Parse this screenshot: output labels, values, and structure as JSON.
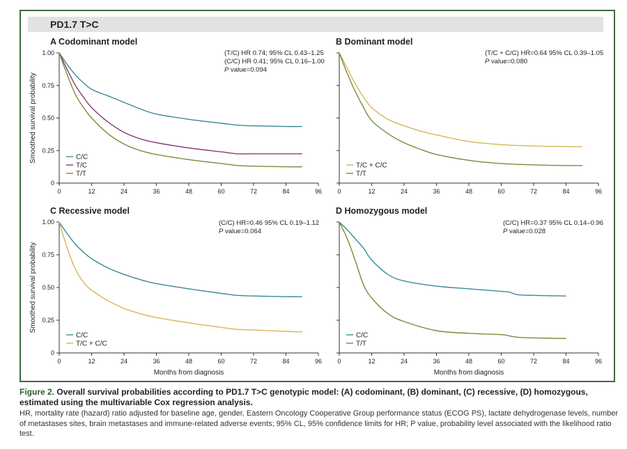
{
  "header": {
    "title": "PD1.7 T>C"
  },
  "colors": {
    "frame": "#3d6b3f",
    "cc": "#3a8a96",
    "tc": "#8b3a78",
    "tt": "#7d8a3a",
    "tc_cc": "#d8b457"
  },
  "chart_data": [
    {
      "type": "line",
      "panel": "A",
      "title": "A  Codominant model",
      "xlabel": "",
      "ylabel": "Smoothed survival probability",
      "xlim": [
        0,
        96
      ],
      "ylim": [
        0,
        1
      ],
      "xticks": [
        "0",
        "12",
        "24",
        "36",
        "48",
        "60",
        "72",
        "84",
        "96"
      ],
      "yticks": [
        "0",
        "0.25",
        "0.50",
        "0.75",
        "1.00"
      ],
      "annotation": [
        "(T/C) HR 0.74; 95% CL 0.43–1.25",
        "(C/C) HR 0.41; 95% CL 0.16–1.00",
        "P value=0.094"
      ],
      "legend_position": "bottom-left",
      "series": [
        {
          "name": "C/C",
          "color": "#3a8a96",
          "x": [
            0,
            3,
            6,
            9,
            12,
            18,
            24,
            30,
            36,
            48,
            60,
            66,
            72,
            84,
            90
          ],
          "y": [
            1,
            0.91,
            0.83,
            0.77,
            0.72,
            0.67,
            0.62,
            0.57,
            0.53,
            0.49,
            0.46,
            0.445,
            0.44,
            0.435,
            0.435
          ]
        },
        {
          "name": "T/C",
          "color": "#8b3a78",
          "x": [
            0,
            3,
            6,
            9,
            12,
            18,
            24,
            30,
            36,
            48,
            60,
            66,
            72,
            84,
            90
          ],
          "y": [
            1,
            0.87,
            0.75,
            0.66,
            0.58,
            0.47,
            0.39,
            0.34,
            0.31,
            0.27,
            0.24,
            0.225,
            0.225,
            0.225,
            0.225
          ]
        },
        {
          "name": "T/T",
          "color": "#7d8a3a",
          "x": [
            0,
            3,
            6,
            9,
            12,
            18,
            24,
            30,
            36,
            48,
            60,
            66,
            72,
            84,
            90
          ],
          "y": [
            1,
            0.83,
            0.68,
            0.58,
            0.5,
            0.38,
            0.3,
            0.25,
            0.22,
            0.18,
            0.15,
            0.135,
            0.13,
            0.125,
            0.125
          ]
        }
      ]
    },
    {
      "type": "line",
      "panel": "B",
      "title": "B  Dominant model",
      "xlabel": "",
      "ylabel": "",
      "xlim": [
        0,
        96
      ],
      "ylim": [
        0,
        1
      ],
      "xticks": [
        "0",
        "12",
        "24",
        "36",
        "48",
        "60",
        "72",
        "84",
        "96"
      ],
      "yticks": [],
      "annotation": [
        "(T/C + C/C) HR=0.64 95% CL 0.39–1.05",
        "P value=0.080"
      ],
      "legend_position": "bottom-left",
      "series": [
        {
          "name": "T/C + C/C",
          "color": "#d8b457",
          "x": [
            0,
            3,
            6,
            9,
            12,
            18,
            24,
            30,
            36,
            48,
            60,
            72,
            84,
            90
          ],
          "y": [
            1,
            0.88,
            0.76,
            0.66,
            0.58,
            0.49,
            0.44,
            0.4,
            0.37,
            0.32,
            0.295,
            0.285,
            0.28,
            0.28
          ]
        },
        {
          "name": "T/T",
          "color": "#7d8a3a",
          "x": [
            0,
            3,
            6,
            9,
            12,
            18,
            24,
            30,
            36,
            48,
            60,
            72,
            84,
            90
          ],
          "y": [
            1,
            0.84,
            0.7,
            0.58,
            0.48,
            0.38,
            0.31,
            0.26,
            0.22,
            0.175,
            0.15,
            0.14,
            0.135,
            0.135
          ]
        }
      ]
    },
    {
      "type": "line",
      "panel": "C",
      "title": "C  Recessive model",
      "xlabel": "Months from diagnosis",
      "ylabel": "Smoothed survival probability",
      "xlim": [
        0,
        96
      ],
      "ylim": [
        0,
        1
      ],
      "xticks": [
        "0",
        "12",
        "24",
        "36",
        "48",
        "60",
        "72",
        "84",
        "96"
      ],
      "yticks": [
        "0",
        "0.25",
        "0.50",
        "0.75",
        "1.00"
      ],
      "annotation": [
        "(C/C) HR=0.46 95% CL 0.19–1.12",
        "P value=0.064"
      ],
      "legend_position": "bottom-left",
      "series": [
        {
          "name": "C/C",
          "color": "#3a8a96",
          "x": [
            0,
            3,
            6,
            9,
            12,
            18,
            24,
            30,
            36,
            48,
            60,
            66,
            72,
            84,
            90
          ],
          "y": [
            1,
            0.91,
            0.83,
            0.77,
            0.72,
            0.65,
            0.6,
            0.56,
            0.53,
            0.49,
            0.455,
            0.44,
            0.435,
            0.43,
            0.43
          ]
        },
        {
          "name": "T/C + C/C",
          "color": "#d8b457",
          "x": [
            0,
            3,
            6,
            9,
            12,
            18,
            24,
            30,
            36,
            48,
            60,
            66,
            72,
            84,
            90
          ],
          "y": [
            1,
            0.8,
            0.64,
            0.54,
            0.48,
            0.4,
            0.34,
            0.3,
            0.27,
            0.23,
            0.195,
            0.18,
            0.175,
            0.165,
            0.16
          ]
        }
      ]
    },
    {
      "type": "line",
      "panel": "D",
      "title": "D  Homozygous model",
      "xlabel": "Months from diagnosis",
      "ylabel": "",
      "xlim": [
        0,
        96
      ],
      "ylim": [
        0,
        1
      ],
      "xticks": [
        "0",
        "12",
        "24",
        "36",
        "48",
        "60",
        "72",
        "84",
        "96"
      ],
      "yticks": [],
      "annotation": [
        "(C/C) HR=0.37 95% CL 0.14–0.96",
        "P value=0.028"
      ],
      "legend_position": "bottom-left",
      "series": [
        {
          "name": "C/C",
          "color": "#3a8a96",
          "x": [
            0,
            3,
            6,
            9,
            12,
            18,
            24,
            36,
            48,
            60,
            63,
            66,
            72,
            84
          ],
          "y": [
            1,
            0.94,
            0.87,
            0.8,
            0.71,
            0.6,
            0.55,
            0.51,
            0.49,
            0.47,
            0.465,
            0.445,
            0.44,
            0.435
          ]
        },
        {
          "name": "T/T",
          "color": "#7d8a3a",
          "x": [
            0,
            3,
            6,
            9,
            12,
            18,
            24,
            36,
            48,
            60,
            63,
            66,
            72,
            84
          ],
          "y": [
            1,
            0.87,
            0.7,
            0.52,
            0.42,
            0.3,
            0.24,
            0.17,
            0.15,
            0.14,
            0.13,
            0.12,
            0.115,
            0.11
          ]
        }
      ]
    }
  ],
  "caption": {
    "figure_label": "Figure 2.",
    "figure_text": "Overall survival probabilities according to PD1.7 T>C genotypic model: (A) codominant, (B) dominant, (C) recessive, (D) homozygous, estimated using the multivariable Cox regression analysis.",
    "note": "HR, mortality rate (hazard) ratio adjusted for baseline age, gender, Eastern Oncology Cooperative Group performance status (ECOG PS), lactate dehydrogenase levels, number of metastases sites, brain metastases and immune-related adverse events; 95% CL, 95% confidence limits for HR; P value, probability level associated with the likelihood ratio test."
  }
}
